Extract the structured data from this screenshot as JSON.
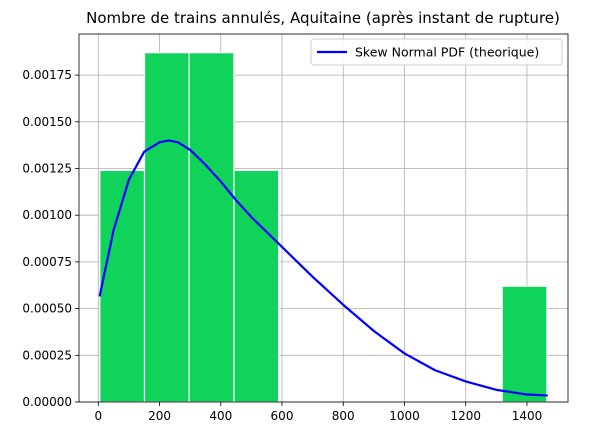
{
  "chart_data": {
    "type": "bar",
    "title": "Nombre de trains annulés, Aquitaine (après instant de rupture)",
    "xlabel": "",
    "ylabel": "",
    "xlim": [
      -63,
      1534
    ],
    "ylim": [
      0,
      0.00197
    ],
    "grid": true,
    "legend_position": "top-right",
    "x_ticks": [
      0,
      200,
      400,
      600,
      800,
      1000,
      1200,
      1400
    ],
    "x_tick_labels": [
      "0",
      "200",
      "400",
      "600",
      "800",
      "1000",
      "1200",
      "1400"
    ],
    "y_ticks": [
      0,
      0.00025,
      0.0005,
      0.00075,
      0.001,
      0.00125,
      0.0015,
      0.00175
    ],
    "y_tick_labels": [
      "0.00000",
      "0.00025",
      "0.00050",
      "0.00075",
      "0.00100",
      "0.00125",
      "0.00150",
      "0.00175"
    ],
    "histogram": {
      "color": "#10d35a",
      "edge_color": "#ffffff",
      "bins": [
        {
          "x0": 5,
          "x1": 151,
          "density": 0.00124
        },
        {
          "x0": 151,
          "x1": 297,
          "density": 0.00187
        },
        {
          "x0": 297,
          "x1": 443,
          "density": 0.00187
        },
        {
          "x0": 443,
          "x1": 589,
          "density": 0.00124
        },
        {
          "x0": 589,
          "x1": 735,
          "density": 0
        },
        {
          "x0": 735,
          "x1": 881,
          "density": 0
        },
        {
          "x0": 881,
          "x1": 1027,
          "density": 0
        },
        {
          "x0": 1027,
          "x1": 1173,
          "density": 0
        },
        {
          "x0": 1173,
          "x1": 1319,
          "density": 0
        },
        {
          "x0": 1319,
          "x1": 1465,
          "density": 0.00062
        }
      ]
    },
    "series": [
      {
        "name": "Skew Normal PDF (theorique)",
        "color": "#0000ff",
        "type": "line",
        "x": [
          5,
          50,
          100,
          150,
          200,
          230,
          260,
          300,
          350,
          400,
          450,
          500,
          550,
          600,
          700,
          800,
          900,
          1000,
          1100,
          1200,
          1300,
          1400,
          1465
        ],
        "y": [
          0.00057,
          0.00092,
          0.00119,
          0.00134,
          0.00139,
          0.0014,
          0.00139,
          0.00135,
          0.00127,
          0.00118,
          0.00108,
          0.00099,
          0.00091,
          0.00083,
          0.00067,
          0.00052,
          0.00038,
          0.00026,
          0.00017,
          0.00011,
          6.5e-05,
          4e-05,
          3.5e-05
        ]
      }
    ]
  }
}
